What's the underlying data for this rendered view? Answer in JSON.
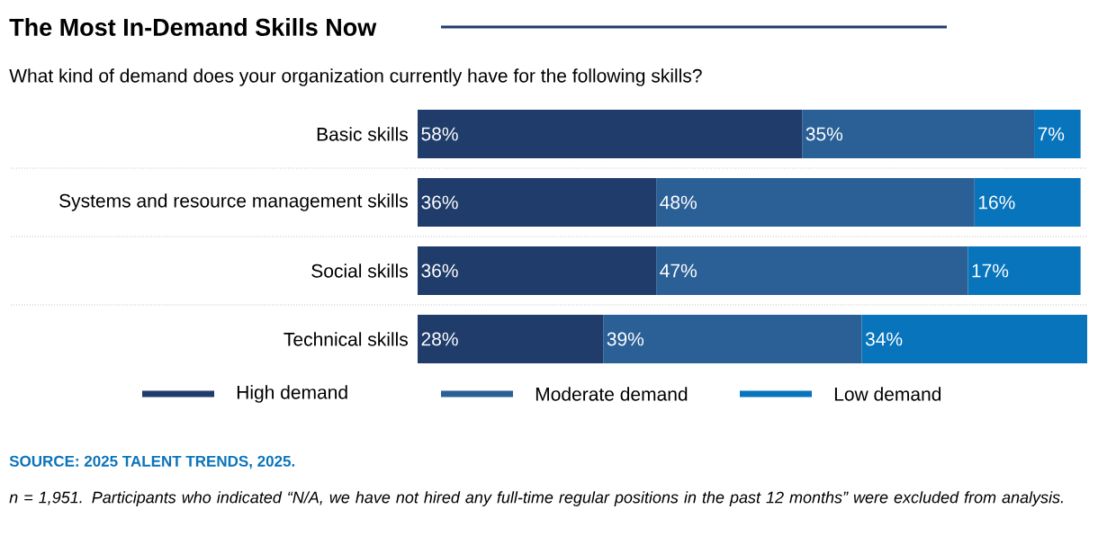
{
  "chart_data": {
    "type": "bar",
    "orientation": "horizontal",
    "stacked": true,
    "title": "The Most In-Demand Skills Now",
    "subtitle": "What kind of demand does your organization currently have for the following skills?",
    "categories": [
      "Basic skills",
      "Systems and resource management skills",
      "Social skills",
      "Technical skills"
    ],
    "series": [
      {
        "name": "High demand",
        "color": "#1f3c6a",
        "values": [
          58,
          36,
          36,
          28
        ],
        "value_labels": [
          "58%",
          "36%",
          "36%",
          "28%"
        ]
      },
      {
        "name": "Moderate demand",
        "color": "#2b6096",
        "values": [
          35,
          48,
          47,
          39
        ],
        "value_labels": [
          "35%",
          "48%",
          "47%",
          "39%"
        ]
      },
      {
        "name": "Low demand",
        "color": "#0874bc",
        "values": [
          7,
          16,
          17,
          34
        ],
        "value_labels": [
          "7%",
          "16%",
          "17%",
          "34%"
        ]
      }
    ],
    "tick_labels": "y",
    "legend": "bottom",
    "annotations": [
      "SOURCE: 2025 TALENT TRENDS, 2025.",
      "n = 1,951. Participants who indicated “N/A, we have not hired any full-time regular positions in the past 12 months” were excluded from analysis."
    ]
  }
}
